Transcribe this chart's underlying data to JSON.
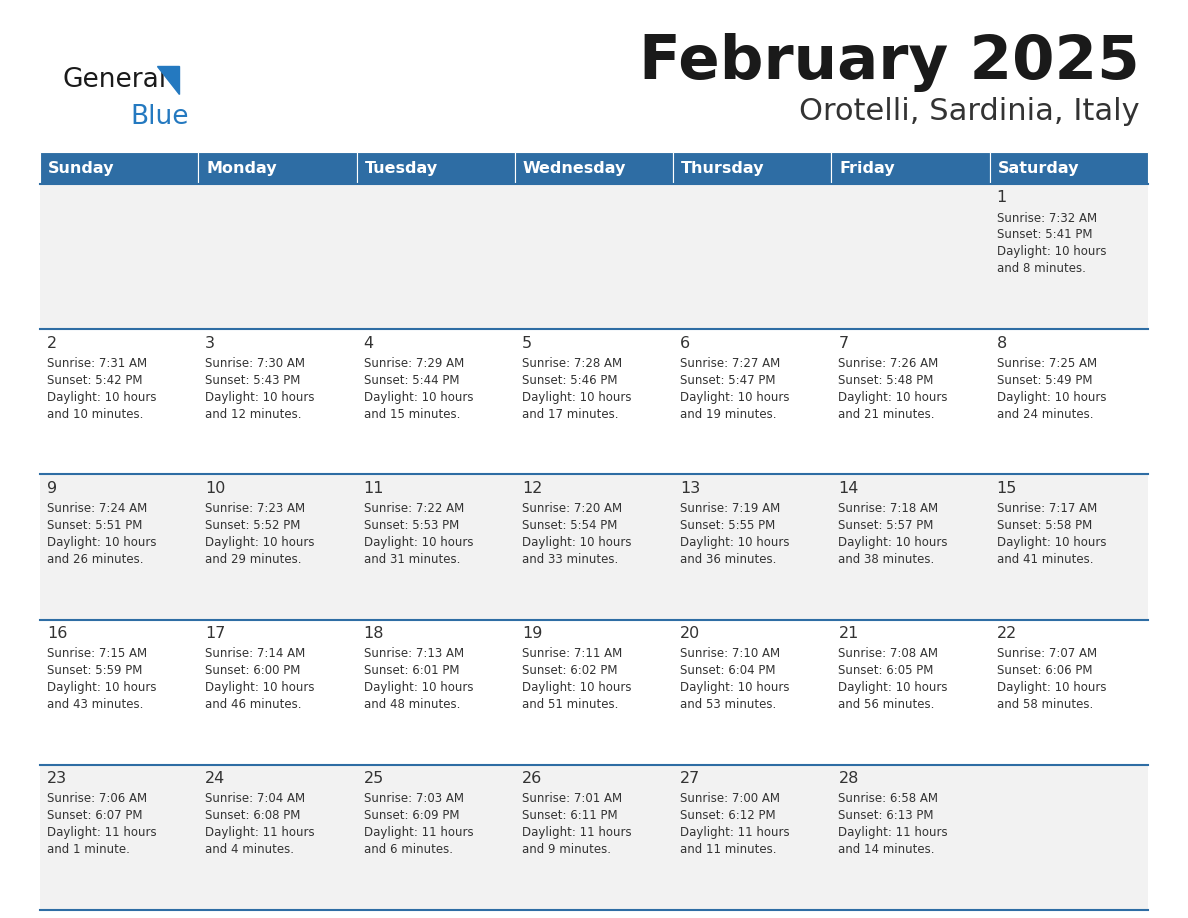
{
  "title": "February 2025",
  "subtitle": "Orotelli, Sardinia, Italy",
  "days_of_week": [
    "Sunday",
    "Monday",
    "Tuesday",
    "Wednesday",
    "Thursday",
    "Friday",
    "Saturday"
  ],
  "header_bg": "#2e6da4",
  "header_text": "#ffffff",
  "row_bg_light": "#f2f2f2",
  "row_bg_white": "#ffffff",
  "title_color": "#1a1a1a",
  "subtitle_color": "#333333",
  "separator_color": "#2e6da4",
  "day_number_color": "#333333",
  "cell_text_color": "#333333",
  "logo_black": "#1a1a1a",
  "logo_blue": "#2479c0",
  "logo_triangle": "#2479c0",
  "calendar_data": [
    [
      null,
      null,
      null,
      null,
      null,
      null,
      {
        "day": 1,
        "sunrise": "7:32 AM",
        "sunset": "5:41 PM",
        "daylight_line1": "Daylight: 10 hours",
        "daylight_line2": "and 8 minutes."
      }
    ],
    [
      {
        "day": 2,
        "sunrise": "7:31 AM",
        "sunset": "5:42 PM",
        "daylight_line1": "Daylight: 10 hours",
        "daylight_line2": "and 10 minutes."
      },
      {
        "day": 3,
        "sunrise": "7:30 AM",
        "sunset": "5:43 PM",
        "daylight_line1": "Daylight: 10 hours",
        "daylight_line2": "and 12 minutes."
      },
      {
        "day": 4,
        "sunrise": "7:29 AM",
        "sunset": "5:44 PM",
        "daylight_line1": "Daylight: 10 hours",
        "daylight_line2": "and 15 minutes."
      },
      {
        "day": 5,
        "sunrise": "7:28 AM",
        "sunset": "5:46 PM",
        "daylight_line1": "Daylight: 10 hours",
        "daylight_line2": "and 17 minutes."
      },
      {
        "day": 6,
        "sunrise": "7:27 AM",
        "sunset": "5:47 PM",
        "daylight_line1": "Daylight: 10 hours",
        "daylight_line2": "and 19 minutes."
      },
      {
        "day": 7,
        "sunrise": "7:26 AM",
        "sunset": "5:48 PM",
        "daylight_line1": "Daylight: 10 hours",
        "daylight_line2": "and 21 minutes."
      },
      {
        "day": 8,
        "sunrise": "7:25 AM",
        "sunset": "5:49 PM",
        "daylight_line1": "Daylight: 10 hours",
        "daylight_line2": "and 24 minutes."
      }
    ],
    [
      {
        "day": 9,
        "sunrise": "7:24 AM",
        "sunset": "5:51 PM",
        "daylight_line1": "Daylight: 10 hours",
        "daylight_line2": "and 26 minutes."
      },
      {
        "day": 10,
        "sunrise": "7:23 AM",
        "sunset": "5:52 PM",
        "daylight_line1": "Daylight: 10 hours",
        "daylight_line2": "and 29 minutes."
      },
      {
        "day": 11,
        "sunrise": "7:22 AM",
        "sunset": "5:53 PM",
        "daylight_line1": "Daylight: 10 hours",
        "daylight_line2": "and 31 minutes."
      },
      {
        "day": 12,
        "sunrise": "7:20 AM",
        "sunset": "5:54 PM",
        "daylight_line1": "Daylight: 10 hours",
        "daylight_line2": "and 33 minutes."
      },
      {
        "day": 13,
        "sunrise": "7:19 AM",
        "sunset": "5:55 PM",
        "daylight_line1": "Daylight: 10 hours",
        "daylight_line2": "and 36 minutes."
      },
      {
        "day": 14,
        "sunrise": "7:18 AM",
        "sunset": "5:57 PM",
        "daylight_line1": "Daylight: 10 hours",
        "daylight_line2": "and 38 minutes."
      },
      {
        "day": 15,
        "sunrise": "7:17 AM",
        "sunset": "5:58 PM",
        "daylight_line1": "Daylight: 10 hours",
        "daylight_line2": "and 41 minutes."
      }
    ],
    [
      {
        "day": 16,
        "sunrise": "7:15 AM",
        "sunset": "5:59 PM",
        "daylight_line1": "Daylight: 10 hours",
        "daylight_line2": "and 43 minutes."
      },
      {
        "day": 17,
        "sunrise": "7:14 AM",
        "sunset": "6:00 PM",
        "daylight_line1": "Daylight: 10 hours",
        "daylight_line2": "and 46 minutes."
      },
      {
        "day": 18,
        "sunrise": "7:13 AM",
        "sunset": "6:01 PM",
        "daylight_line1": "Daylight: 10 hours",
        "daylight_line2": "and 48 minutes."
      },
      {
        "day": 19,
        "sunrise": "7:11 AM",
        "sunset": "6:02 PM",
        "daylight_line1": "Daylight: 10 hours",
        "daylight_line2": "and 51 minutes."
      },
      {
        "day": 20,
        "sunrise": "7:10 AM",
        "sunset": "6:04 PM",
        "daylight_line1": "Daylight: 10 hours",
        "daylight_line2": "and 53 minutes."
      },
      {
        "day": 21,
        "sunrise": "7:08 AM",
        "sunset": "6:05 PM",
        "daylight_line1": "Daylight: 10 hours",
        "daylight_line2": "and 56 minutes."
      },
      {
        "day": 22,
        "sunrise": "7:07 AM",
        "sunset": "6:06 PM",
        "daylight_line1": "Daylight: 10 hours",
        "daylight_line2": "and 58 minutes."
      }
    ],
    [
      {
        "day": 23,
        "sunrise": "7:06 AM",
        "sunset": "6:07 PM",
        "daylight_line1": "Daylight: 11 hours",
        "daylight_line2": "and 1 minute."
      },
      {
        "day": 24,
        "sunrise": "7:04 AM",
        "sunset": "6:08 PM",
        "daylight_line1": "Daylight: 11 hours",
        "daylight_line2": "and 4 minutes."
      },
      {
        "day": 25,
        "sunrise": "7:03 AM",
        "sunset": "6:09 PM",
        "daylight_line1": "Daylight: 11 hours",
        "daylight_line2": "and 6 minutes."
      },
      {
        "day": 26,
        "sunrise": "7:01 AM",
        "sunset": "6:11 PM",
        "daylight_line1": "Daylight: 11 hours",
        "daylight_line2": "and 9 minutes."
      },
      {
        "day": 27,
        "sunrise": "7:00 AM",
        "sunset": "6:12 PM",
        "daylight_line1": "Daylight: 11 hours",
        "daylight_line2": "and 11 minutes."
      },
      {
        "day": 28,
        "sunrise": "6:58 AM",
        "sunset": "6:13 PM",
        "daylight_line1": "Daylight: 11 hours",
        "daylight_line2": "and 14 minutes."
      },
      null
    ]
  ]
}
